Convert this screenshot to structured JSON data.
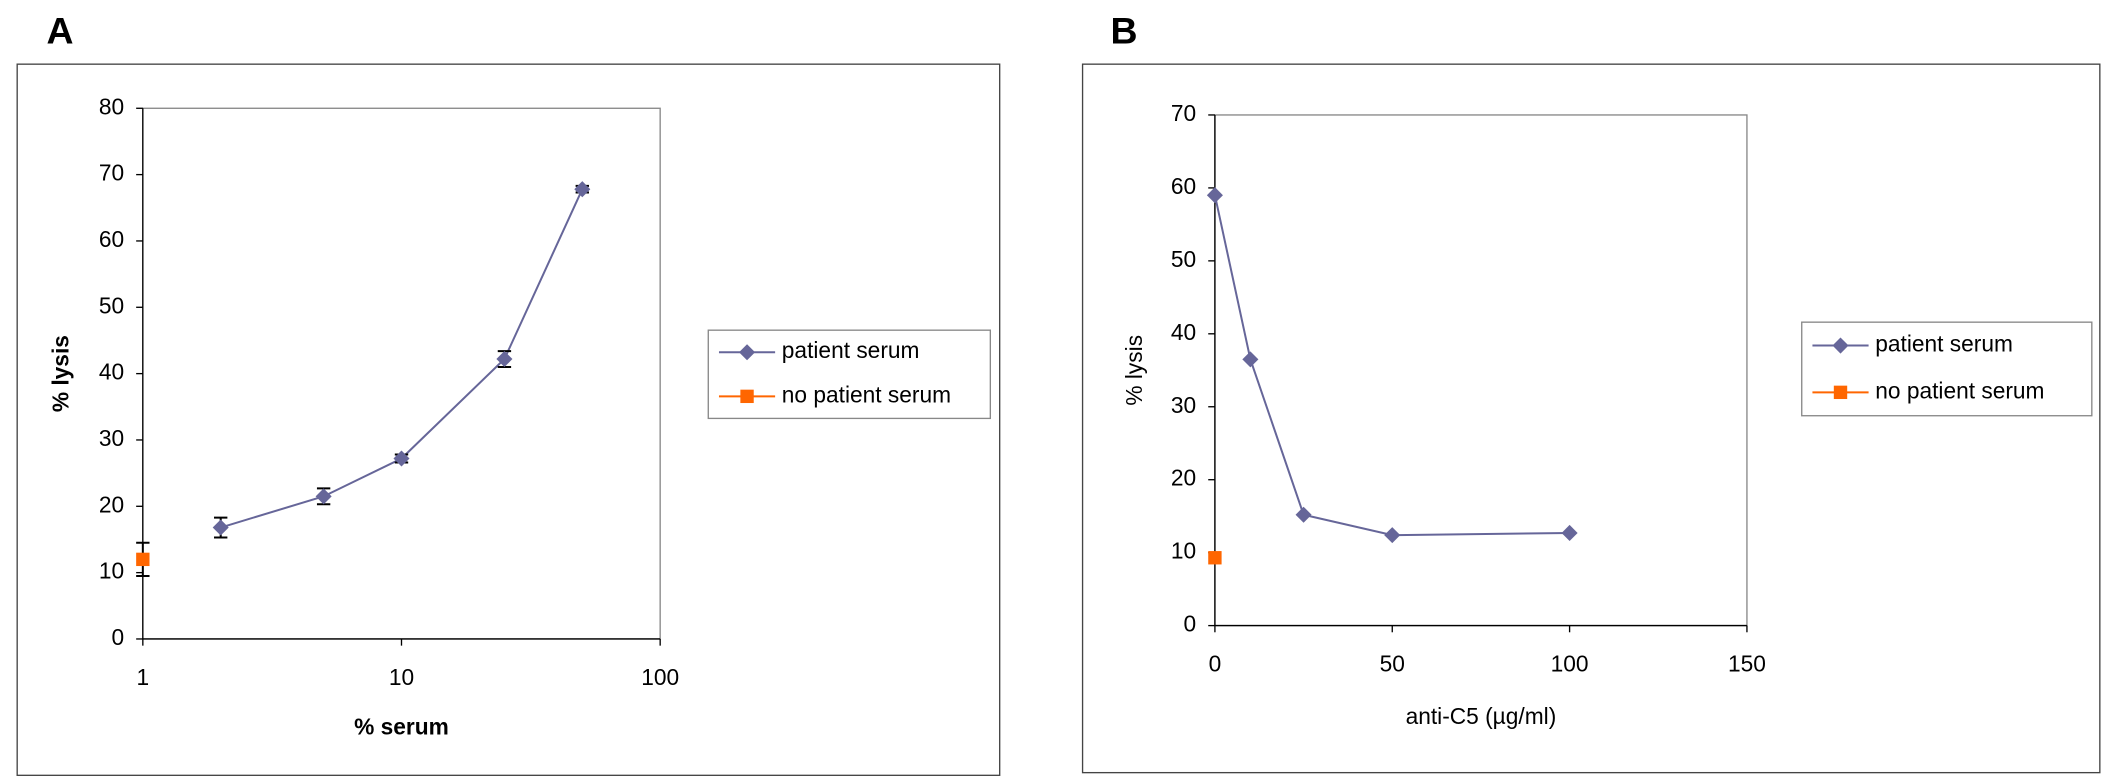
{
  "chart_data": [
    {
      "type": "line",
      "panel_label": "A",
      "xlabel": "% serum",
      "ylabel": "% lysis",
      "xscale": "log",
      "xlim": [
        1,
        100
      ],
      "xticks": [
        1,
        10,
        100
      ],
      "ylim": [
        0,
        80
      ],
      "yticks": [
        0,
        10,
        20,
        30,
        40,
        50,
        60,
        70,
        80
      ],
      "grid": false,
      "series": [
        {
          "name": "patient serum",
          "color": "#666699",
          "marker": "diamond",
          "x": [
            2,
            5,
            10,
            25,
            50
          ],
          "values": [
            16.8,
            21.5,
            27.2,
            42.2,
            67.8
          ],
          "errors": [
            1.5,
            1.2,
            0.6,
            1.2,
            0.5
          ]
        },
        {
          "name": "no patient serum",
          "color": "#ff6600",
          "marker": "square",
          "x": [
            1
          ],
          "values": [
            12
          ],
          "errors": [
            2.5
          ]
        }
      ]
    },
    {
      "type": "line",
      "panel_label": "B",
      "xlabel": "anti-C5 (µg/ml)",
      "ylabel": "% lysis",
      "xscale": "linear",
      "xlim": [
        0,
        150
      ],
      "xticks": [
        0,
        50,
        100,
        150
      ],
      "ylim": [
        0,
        70
      ],
      "yticks": [
        0,
        10,
        20,
        30,
        40,
        50,
        60,
        70
      ],
      "grid": false,
      "series": [
        {
          "name": "patient serum",
          "color": "#666699",
          "marker": "diamond",
          "x": [
            0,
            10,
            25,
            50,
            100
          ],
          "values": [
            59,
            36.5,
            15.2,
            12.4,
            12.7
          ]
        },
        {
          "name": "no patient serum",
          "color": "#ff6600",
          "marker": "square",
          "x": [
            0
          ],
          "values": [
            9.3
          ]
        }
      ]
    }
  ]
}
